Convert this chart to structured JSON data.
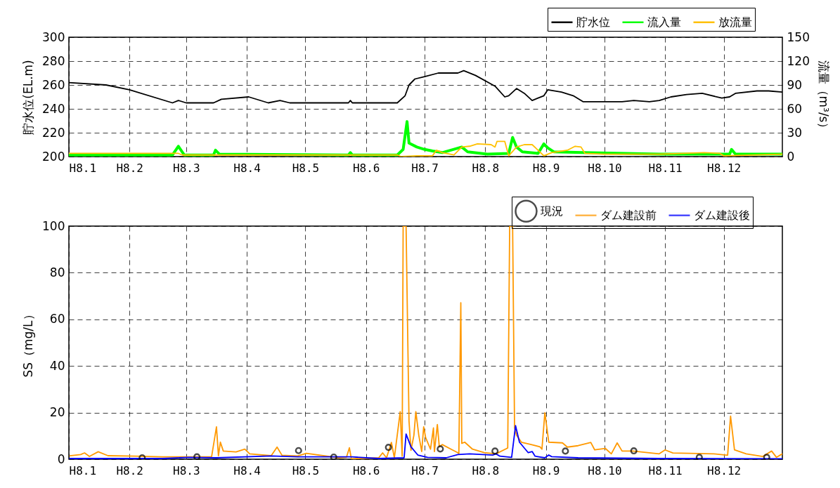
{
  "chart_data": [
    {
      "type": "line",
      "ylabel": "貯水位(EL.m)",
      "y2label": "流量（m³/s）",
      "xlim": [
        "--01-01",
        "--12-31"
      ],
      "xticks": [
        {
          "value": "--01-01",
          "label": "H8.1"
        },
        {
          "value": "--02-01",
          "label": "H8.2"
        },
        {
          "value": "--03-01",
          "label": "H8.3"
        },
        {
          "value": "--04-01",
          "label": "H8.4"
        },
        {
          "value": "--05-01",
          "label": "H8.5"
        },
        {
          "value": "--06-01",
          "label": "H8.6"
        },
        {
          "value": "--07-01",
          "label": "H8.7"
        },
        {
          "value": "--08-01",
          "label": "H8.8"
        },
        {
          "value": "--09-01",
          "label": "H8.9"
        },
        {
          "value": "--10-01",
          "label": "H8.10"
        },
        {
          "value": "--11-01",
          "label": "H8.11"
        },
        {
          "value": "--12-01",
          "label": "H8.12"
        }
      ],
      "ylim": [
        200,
        300
      ],
      "yticks": [
        200,
        220,
        240,
        260,
        280,
        300
      ],
      "y2lim": [
        0,
        150
      ],
      "y2ticks": [
        0,
        30,
        60,
        90,
        120,
        150
      ],
      "grid": true,
      "legend": "top right",
      "series": [
        {
          "name": "貯水位",
          "color": "#000000",
          "x": [
            "--01-01",
            "--01-20",
            "--02-01",
            "--02-23",
            "--02-26",
            "--03-01",
            "--03-15",
            "--03-19",
            "--04-02",
            "--04-12",
            "--04-18",
            "--04-23",
            "--05-23",
            "--05-24",
            "--05-25",
            "--06-17",
            "--06-21",
            "--06-23",
            "--06-26",
            "--07-01",
            "--07-08",
            "--07-18",
            "--07-21",
            "--07-27",
            "--08-06",
            "--08-11",
            "--08-13",
            "--08-17",
            "--08-21",
            "--08-25",
            "--08-31",
            "--09-02",
            "--09-09",
            "--09-15",
            "--09-20",
            "--10-10",
            "--10-16",
            "--10-24",
            "--10-29",
            "--11-04",
            "--11-12",
            "--11-20",
            "--11-30",
            "--12-04",
            "--12-07",
            "--12-18",
            "--12-24",
            "--12-31"
          ],
          "values": [
            262,
            260,
            256,
            245,
            247,
            245,
            245,
            248,
            250,
            245,
            247,
            245,
            245,
            247,
            245,
            245,
            251,
            260,
            265,
            267,
            270,
            270,
            272,
            268,
            259,
            250,
            251,
            257,
            253,
            247,
            251,
            256,
            254,
            251,
            246,
            246,
            247,
            246,
            247,
            250,
            252,
            253,
            249,
            250,
            253,
            255,
            255,
            254
          ]
        },
        {
          "name": "流入量",
          "color": "#00ff00",
          "axis": "y2",
          "x": [
            "--01-01",
            "--02-23",
            "--02-26",
            "--02-29",
            "--03-15",
            "--03-16",
            "--03-18",
            "--05-23",
            "--05-24",
            "--05-25",
            "--06-17",
            "--06-20",
            "--06-22",
            "--06-23",
            "--06-27",
            "--07-01",
            "--07-05",
            "--07-10",
            "--07-20",
            "--07-23",
            "--08-02",
            "--08-13",
            "--08-15",
            "--08-17",
            "--08-20",
            "--08-28",
            "--08-31",
            "--09-02",
            "--09-05",
            "--09-20",
            "--10-29",
            "--12-04",
            "--12-05",
            "--12-07",
            "--12-31"
          ],
          "values": [
            2,
            2,
            13,
            2,
            2,
            8,
            3,
            2,
            5,
            2,
            2,
            9,
            44,
            17,
            12,
            9,
            7,
            5,
            12,
            6,
            3,
            4,
            24,
            12,
            6,
            4,
            16,
            11,
            6,
            5,
            3,
            3,
            9,
            3,
            3
          ]
        },
        {
          "name": "放流量",
          "color": "#ffc000",
          "axis": "y2",
          "x": [
            "--01-01",
            "--02-26",
            "--02-28",
            "--06-17",
            "--06-19",
            "--06-27",
            "--07-05",
            "--07-07",
            "--07-10",
            "--07-16",
            "--07-20",
            "--07-24",
            "--07-28",
            "--08-04",
            "--08-06",
            "--08-07",
            "--08-11",
            "--08-13",
            "--08-17",
            "--08-21",
            "--08-25",
            "--08-31",
            "--09-04",
            "--09-12",
            "--09-16",
            "--09-19",
            "--09-21",
            "--10-01",
            "--10-29",
            "--11-21",
            "--11-29",
            "--12-01",
            "--12-31"
          ],
          "values": [
            4,
            4,
            2,
            2,
            0,
            1,
            1,
            8,
            5,
            2,
            12,
            13,
            16,
            15,
            12,
            19,
            19,
            1,
            12,
            15,
            15,
            1,
            5,
            8,
            13,
            12,
            4,
            3,
            3,
            5,
            4,
            1,
            3
          ]
        }
      ]
    },
    {
      "type": "line",
      "ylabel": "SS（mg/L）",
      "xlim": [
        "--01-01",
        "--12-31"
      ],
      "xticks": [
        {
          "value": "--01-01",
          "label": "H8.1"
        },
        {
          "value": "--02-01",
          "label": "H8.2"
        },
        {
          "value": "--03-01",
          "label": "H8.3"
        },
        {
          "value": "--04-01",
          "label": "H8.4"
        },
        {
          "value": "--05-01",
          "label": "H8.5"
        },
        {
          "value": "--06-01",
          "label": "H8.6"
        },
        {
          "value": "--07-01",
          "label": "H8.7"
        },
        {
          "value": "--08-01",
          "label": "H8.8"
        },
        {
          "value": "--09-01",
          "label": "H8.9"
        },
        {
          "value": "--10-01",
          "label": "H8.10"
        },
        {
          "value": "--11-01",
          "label": "H8.11"
        },
        {
          "value": "--12-01",
          "label": "H8.12"
        }
      ],
      "ylim": [
        0,
        100
      ],
      "yticks": [
        0,
        20,
        40,
        60,
        80,
        100
      ],
      "grid": true,
      "legend": "top right",
      "series": [
        {
          "name": "現況",
          "type": "scatter",
          "marker": "circle",
          "color": "#000000",
          "x": [
            "--02-07T12:00",
            "--03-06T12:00",
            "--04-27T12:00",
            "--05-15T12:00",
            "--06-12T12:00",
            "--07-09",
            "--08-06",
            "--09-11",
            "--10-16",
            "--11-18T12:00",
            "--12-23"
          ],
          "values": [
            0.6,
            1,
            3.7,
            0.9,
            5.1,
            4.4,
            3.5,
            3.5,
            3.6,
            0.8,
            0.8
          ]
        },
        {
          "name": "ダム建設前",
          "color": "#ff9900",
          "x": [
            "--01-01T12:00",
            "--01-07",
            "--01-09",
            "--01-11T12:00",
            "--01-16",
            "--01-21",
            "--02-04",
            "--02-18",
            "--03-14",
            "--03-16T12:00",
            "--03-17T12:00",
            "--03-18T12:00",
            "--03-20",
            "--03-26T12:00",
            "--03-31",
            "--04-02T12:00",
            "--04-13T12:00",
            "--04-16T12:00",
            "--04-19",
            "--04-27",
            "--05-01T12:00",
            "--05-18",
            "--05-22",
            "--05-23T12:00",
            "--05-24T12:00",
            "--06-07T12:00",
            "--06-09T12:00",
            "--06-11T12:00",
            "--06-14",
            "--06-15T12:00",
            "--06-18T12:00",
            "--06-19T12:00",
            "--06-20",
            "--06-21T12:00",
            "--06-23",
            "--06-24",
            "--06-25T12:00",
            "--06-26T12:00",
            "--06-28",
            "--06-29T12:00",
            "--06-30T12:00",
            "--07-01T12:00",
            "--07-03",
            "--07-04",
            "--07-05T12:00",
            "--07-06",
            "--07-07T12:00",
            "--07-08T12:00",
            "--07-10",
            "--07-14T12:00",
            "--07-18",
            "--07-18T12:00",
            "--07-19T12:00",
            "--07-20",
            "--07-21T12:00",
            "--07-25T12:00",
            "--07-31T12:00",
            "--08-06T12:00",
            "--08-12T12:00",
            "--08-13T12:00",
            "--08-15",
            "--08-16",
            "--08-17",
            "--08-19T12:00",
            "--08-24T12:00",
            "--08-29",
            "--08-30",
            "--08-31T12:00",
            "--09-02T12:00",
            "--09-09T12:00",
            "--09-12",
            "--09-17T12:00",
            "--09-24",
            "--09-26",
            "--10-01T12:00",
            "--10-04T12:00",
            "--10-07T12:00",
            "--10-10",
            "--10-15T12:00",
            "--10-29",
            "--11-01",
            "--11-05",
            "--11-26",
            "--12-03",
            "--12-04T12:00",
            "--12-06T12:00",
            "--12-12T12:00",
            "--12-21",
            "--12-25T12:00",
            "--12-28",
            "--12-31"
          ],
          "values": [
            1.5,
            2,
            2.7,
            1.2,
            3.2,
            1.5,
            1.3,
            1,
            1,
            13.9,
            1.5,
            7.3,
            3.5,
            3.1,
            4.3,
            2.3,
            1.5,
            5.2,
            1.7,
            1.4,
            2.5,
            0.6,
            0.8,
            4.9,
            0.2,
            0.6,
            2.7,
            0.6,
            7.2,
            0.6,
            20.4,
            1.3,
            100,
            100,
            16.4,
            3.8,
            10.3,
            20.4,
            10.3,
            3.3,
            13.9,
            9.3,
            6.3,
            4.3,
            13.4,
            3.3,
            14.9,
            5.3,
            6.3,
            4.3,
            2.8,
            2.3,
            67.1,
            6.8,
            7.3,
            4.3,
            2.8,
            2.3,
            4.8,
            100,
            100,
            13.4,
            10.3,
            7.3,
            6.3,
            5.3,
            4.3,
            19.9,
            7.3,
            7,
            5.2,
            5.8,
            7.2,
            4,
            4.6,
            2.3,
            7,
            3.5,
            3.5,
            2.3,
            4,
            2.7,
            2.3,
            1.7,
            18.5,
            4,
            2.3,
            1.2,
            3.5,
            0.8,
            2.3
          ]
        },
        {
          "name": "ダム建設後",
          "color": "#0000ff",
          "x": [
            "--01-01T12:00",
            "--02-18",
            "--03-02T12:00",
            "--03-16T12:00",
            "--04-13T12:00",
            "--04-27",
            "--05-25",
            "--06-07T12:00",
            "--06-20T12:00",
            "--06-21T12:00",
            "--06-24",
            "--06-27T12:00",
            "--07-02T12:00",
            "--07-12",
            "--07-18",
            "--07-24",
            "--08-05",
            "--08-06T12:00",
            "--08-08T12:00",
            "--08-14T12:00",
            "--08-16T12:00",
            "--08-18T12:00",
            "--08-23",
            "--08-25",
            "--08-26T12:00",
            "--08-31T12:00",
            "--09-02T12:00",
            "--09-04",
            "--09-17T12:00",
            "--10-29",
            "--12-31"
          ],
          "values": [
            0.3,
            0.3,
            0.8,
            0.6,
            1.4,
            1,
            1,
            0.3,
            0.6,
            10.8,
            5.3,
            1.8,
            0.8,
            0.6,
            2,
            2.3,
            1.8,
            2.3,
            1.3,
            0.8,
            14.4,
            7.3,
            2.8,
            3.3,
            1.3,
            0.6,
            1.8,
            1.1,
            0.6,
            0.3,
            0.2
          ]
        }
      ]
    }
  ]
}
